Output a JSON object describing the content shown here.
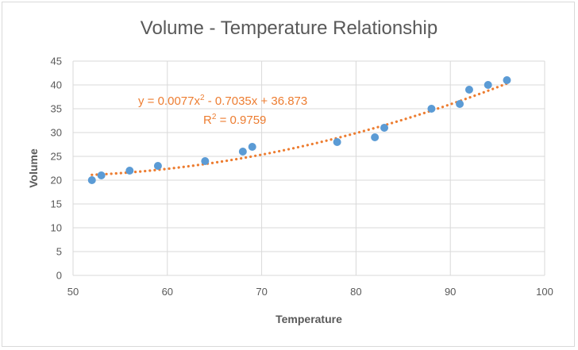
{
  "chart_data": {
    "type": "scatter",
    "title": "Volume - Temperature Relationship",
    "xlabel": "Temperature",
    "ylabel": "Volume",
    "xlim": [
      50,
      100
    ],
    "ylim": [
      0,
      45
    ],
    "x_ticks": [
      "50",
      "60",
      "70",
      "80",
      "90",
      "100"
    ],
    "y_ticks": [
      "0",
      "5",
      "10",
      "15",
      "20",
      "25",
      "30",
      "35",
      "40",
      "45"
    ],
    "grid": true,
    "series": [
      {
        "x": [
          52,
          53,
          56,
          59,
          64,
          68,
          69,
          78,
          82,
          83,
          88,
          91,
          92,
          94,
          96
        ],
        "y": [
          20,
          21,
          22,
          23,
          24,
          26,
          27,
          28,
          29,
          31,
          35,
          36,
          39,
          40,
          41
        ]
      }
    ],
    "trendline": {
      "type": "polynomial",
      "order": 2,
      "coefficients": [
        0.0077,
        -0.7035,
        36.873
      ],
      "equation_parts": [
        "y = 0.0077x",
        "2",
        " - 0.7035x + 36.873"
      ],
      "r2_parts": [
        "R",
        "2",
        " = 0.9759"
      ]
    },
    "colors": {
      "points": "#5b9bd5",
      "trendline": "#ed7d31",
      "grid": "#d9d9d9",
      "text": "#595959"
    }
  }
}
